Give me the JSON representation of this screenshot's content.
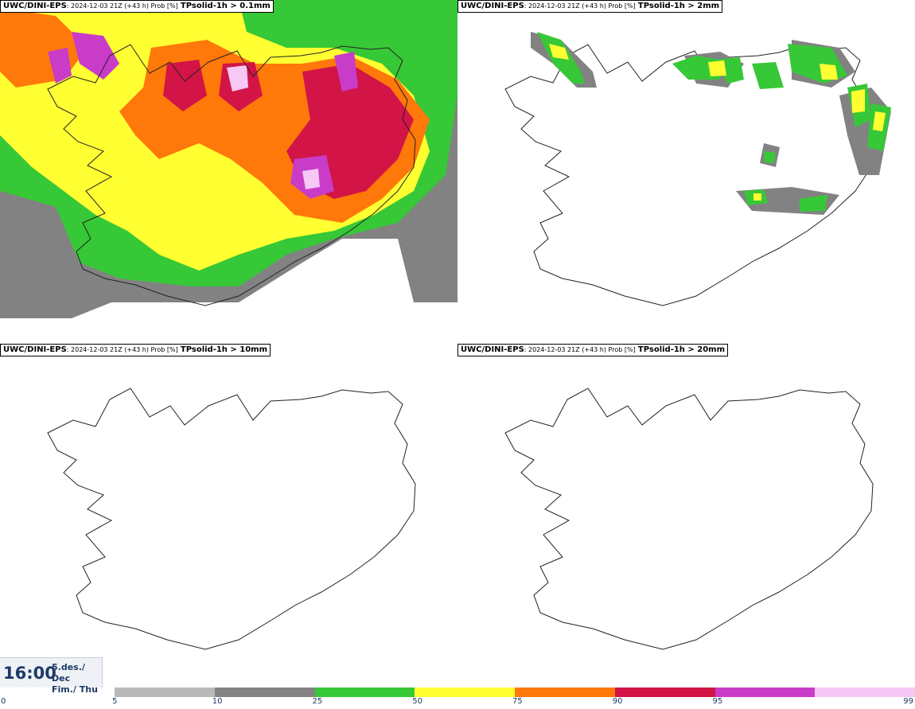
{
  "panels": [
    {
      "model": "UWC/DINI-EPS",
      "meta": "2024-12-03 21Z (+43 h) Prob [%]",
      "field": "TPsolid-1h > 0.1mm"
    },
    {
      "model": "UWC/DINI-EPS",
      "meta": "2024-12-03 21Z (+43 h) Prob [%]",
      "field": "TPsolid-1h > 2mm"
    },
    {
      "model": "UWC/DINI-EPS",
      "meta": "2024-12-03 21Z (+43 h) Prob [%]",
      "field": "TPsolid-1h > 10mm"
    },
    {
      "model": "UWC/DINI-EPS",
      "meta": "2024-12-03 21Z (+43 h) Prob [%]",
      "field": "TPsolid-1h > 20mm"
    }
  ],
  "time": {
    "clock": "16:00",
    "date_line1": "5.des./ Dec",
    "date_line2": "Fim./ Thu"
  },
  "legend": {
    "labels": [
      "0",
      "5",
      "10",
      "25",
      "50",
      "75",
      "90",
      "95",
      "99"
    ],
    "colors": [
      "#b9b9b9",
      "#828282",
      "#37c837",
      "#ffff32",
      "#ff780a",
      "#d21446",
      "#c83cc8",
      "#f5c8f5"
    ]
  }
}
